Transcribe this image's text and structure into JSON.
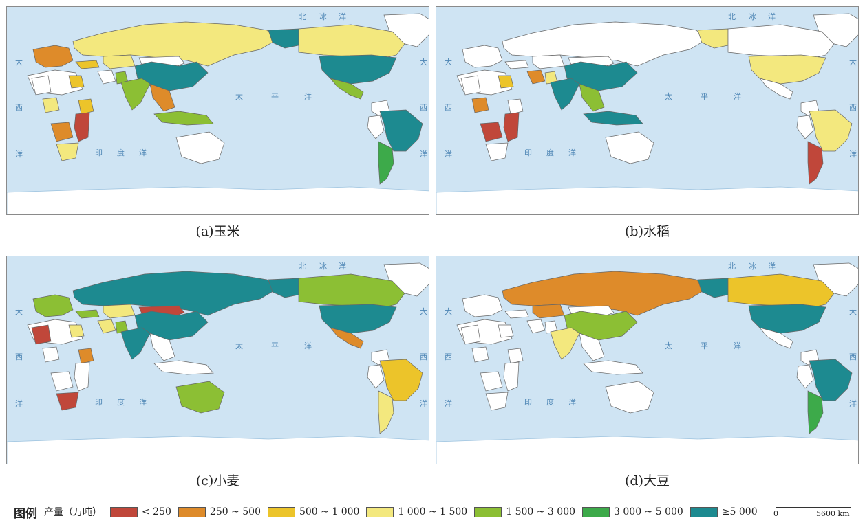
{
  "panels": [
    {
      "id": "a",
      "caption": "(a)玉米",
      "crop": "玉米",
      "fills": {
        "china": "tealdark",
        "russia": "yellowlight",
        "usa": "tealdark",
        "canada": "yellowlight",
        "alaska": "tealdark",
        "brazil": "tealdark",
        "argentina": "green",
        "india": "green1500",
        "indonesia": "green1500",
        "australia": "white",
        "mexico": "green1500",
        "southafrica": "yellowlight",
        "nigeria": "yellowlight",
        "ethiopia": "yellow",
        "egypt": "yellow",
        "kazakhstan": "yellowlight",
        "westeurope": "orange",
        "eastafrica": "red",
        "southeastasia": "orange",
        "iran": "white",
        "pakistan": "green1500",
        "angola": "orange",
        "mongolia": "white",
        "greenland": "white",
        "peru": "white",
        "colombia": "white",
        "turkey": "yellow",
        "algeria": "white",
        "sahara": "white"
      }
    },
    {
      "id": "b",
      "caption": "(b)水稻",
      "crop": "水稻",
      "fills": {
        "china": "tealdark",
        "russia": "white",
        "usa": "yellowlight",
        "canada": "white",
        "alaska": "yellowlight",
        "brazil": "yellowlight",
        "argentina": "red",
        "india": "tealdark",
        "indonesia": "tealdark",
        "australia": "white",
        "mexico": "white",
        "southafrica": "white",
        "nigeria": "orange",
        "ethiopia": "white",
        "egypt": "yellow",
        "kazakhstan": "white",
        "westeurope": "white",
        "eastafrica": "red",
        "southeastasia": "green1500",
        "iran": "orange",
        "pakistan": "yellowlight",
        "angola": "red",
        "mongolia": "white",
        "greenland": "white",
        "peru": "white",
        "colombia": "white",
        "turkey": "white",
        "algeria": "white",
        "sahara": "white"
      }
    },
    {
      "id": "c",
      "caption": "(c)小麦",
      "crop": "小麦",
      "fills": {
        "china": "tealdark",
        "russia": "tealdark",
        "usa": "tealdark",
        "canada": "green1500",
        "alaska": "tealdark",
        "brazil": "yellow",
        "argentina": "yellowlight",
        "india": "tealdark",
        "indonesia": "white",
        "australia": "green1500",
        "mexico": "orange",
        "southafrica": "red",
        "nigeria": "white",
        "ethiopia": "orange",
        "egypt": "yellowlight",
        "kazakhstan": "yellowlight",
        "westeurope": "green1500",
        "eastafrica": "white",
        "southeastasia": "white",
        "iran": "yellowlight",
        "pakistan": "green1500",
        "angola": "white",
        "mongolia": "red",
        "greenland": "white",
        "peru": "white",
        "colombia": "white",
        "turkey": "green1500",
        "algeria": "red",
        "sahara": "white"
      }
    },
    {
      "id": "d",
      "caption": "(d)大豆",
      "crop": "大豆",
      "fills": {
        "china": "green1500",
        "russia": "orange",
        "usa": "tealdark",
        "canada": "yellow",
        "alaska": "tealdark",
        "brazil": "tealdark",
        "argentina": "green",
        "india": "yellowlight",
        "indonesia": "white",
        "australia": "white",
        "mexico": "white",
        "southafrica": "white",
        "nigeria": "white",
        "ethiopia": "white",
        "egypt": "white",
        "kazakhstan": "orange",
        "westeurope": "white",
        "eastafrica": "white",
        "southeastasia": "white",
        "iran": "white",
        "pakistan": "white",
        "angola": "white",
        "mongolia": "white",
        "greenland": "white",
        "peru": "white",
        "colombia": "white",
        "turkey": "white",
        "algeria": "white",
        "sahara": "white"
      }
    }
  ],
  "ocean_labels": {
    "arctic": [
      "北",
      "冰",
      "洋"
    ],
    "atlantic_left": [
      "大",
      "西",
      "洋"
    ],
    "indian": [
      "印",
      "度",
      "洋"
    ],
    "pacific": [
      "太",
      "平",
      "洋"
    ],
    "atlantic_right": [
      "大",
      "西",
      "洋"
    ]
  },
  "legend": {
    "title": "图例",
    "unit": "产量（万吨）",
    "classes": [
      {
        "key": "red",
        "label": "< 250",
        "color": "#c0473a"
      },
      {
        "key": "orange",
        "label": "250 ~ 500",
        "color": "#de8b2a"
      },
      {
        "key": "yellow",
        "label": "500 ~ 1 000",
        "color": "#ecc42a"
      },
      {
        "key": "yellowlight",
        "label": "1 000 ~ 1 500",
        "color": "#f3e87e"
      },
      {
        "key": "green1500",
        "label": "1 500 ~ 3 000",
        "color": "#8cbf34"
      },
      {
        "key": "green",
        "label": "3 000 ~ 5 000",
        "color": "#3daa4a"
      },
      {
        "key": "tealdark",
        "label": "≥5 000",
        "color": "#1d8a90"
      }
    ]
  },
  "scale_bar": {
    "start_label": "0",
    "end_label": "5600 km"
  },
  "colors": {
    "ocean": "#cfe4f3",
    "land_empty": "#ffffff",
    "ice": "#ffffff",
    "border": "#666666"
  }
}
